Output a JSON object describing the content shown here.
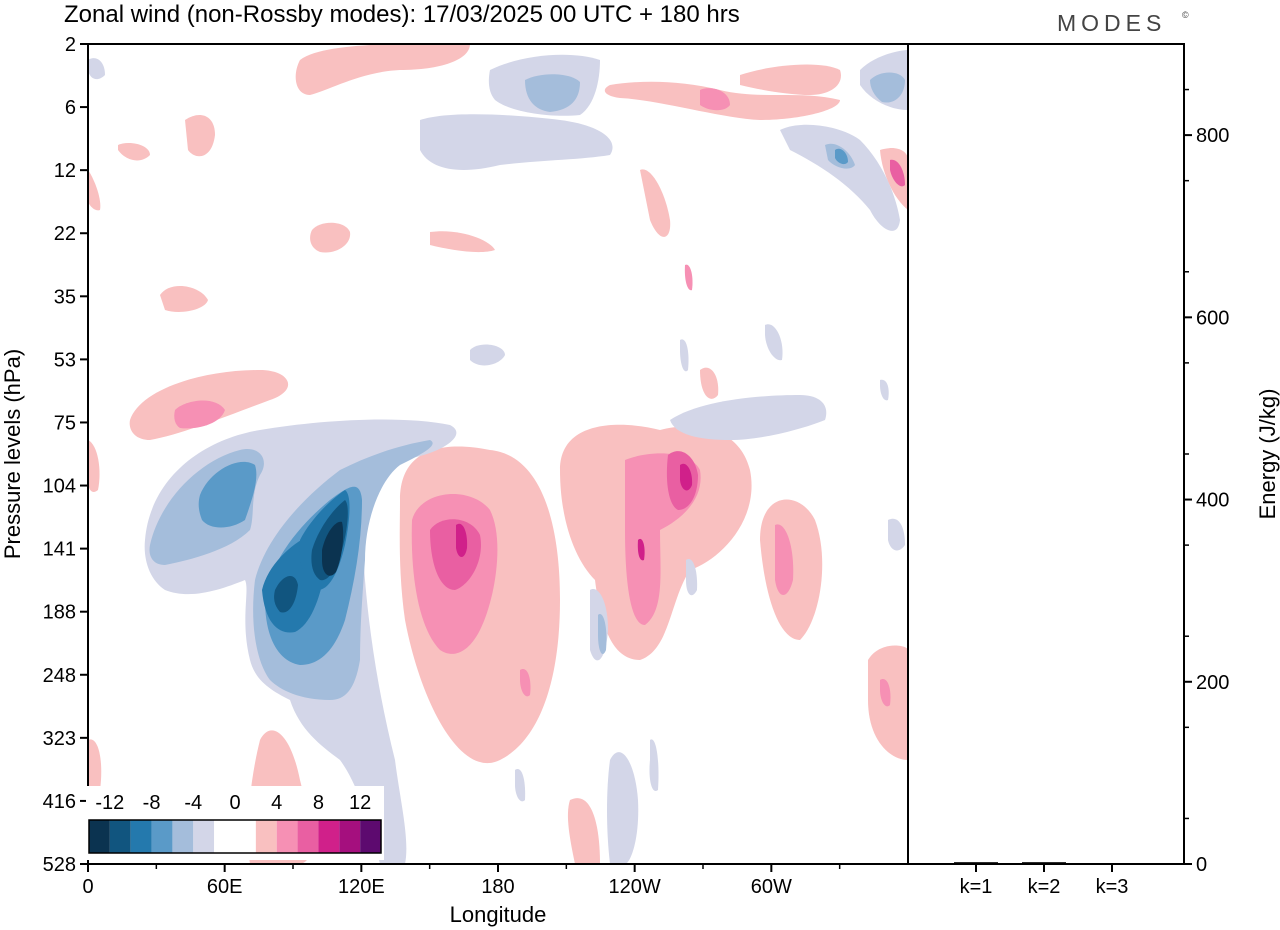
{
  "header": {
    "title": "Zonal wind (non-Rossby modes):  17/03/2025  00 UTC  + 180 hrs",
    "brand": "MODES",
    "brand_mark": "©"
  },
  "chart_data": [
    {
      "type": "heatmap",
      "title": "Zonal wind (non-Rossby modes):  17/03/2025  00 UTC  + 180 hrs",
      "xlabel": "Longitude",
      "ylabel": "Pressure levels (hPa)",
      "x_ticks": [
        "0",
        "60E",
        "120E",
        "180",
        "120W",
        "60W"
      ],
      "x_tick_values": [
        0,
        60,
        120,
        180,
        240,
        300
      ],
      "xlim": [
        0,
        360
      ],
      "y_ticks": [
        "2",
        "6",
        "12",
        "22",
        "35",
        "53",
        "75",
        "104",
        "141",
        "188",
        "248",
        "323",
        "416",
        "528"
      ],
      "colorbar": {
        "labels": [
          "-12",
          "-8",
          "-4",
          "0",
          "4",
          "8",
          "12"
        ],
        "colors": [
          "#0b3350",
          "#11557f",
          "#2479ad",
          "#5a9ac8",
          "#a4bddb",
          "#d3d6e8",
          "#ffffff",
          "#ffffff",
          "#f9c0c0",
          "#f690b4",
          "#e95fa2",
          "#d0208a",
          "#a50f7e",
          "#5d0a6f"
        ]
      },
      "features": [
        {
          "name": "negative core",
          "lon": 105,
          "pressure_hPa": 141,
          "value": -14
        },
        {
          "name": "negative west lobe",
          "lon": 55,
          "pressure_hPa": 110,
          "value": -6
        },
        {
          "name": "positive core",
          "lon": 165,
          "pressure_hPa": 141,
          "value": 10
        },
        {
          "name": "positive east core",
          "lon": 263,
          "pressure_hPa": 104,
          "value": 10
        },
        {
          "name": "positive center",
          "lon": 242,
          "pressure_hPa": 150,
          "value": 6
        }
      ]
    },
    {
      "type": "bar",
      "categories": [
        "k=1",
        "k=2",
        "k=3"
      ],
      "values": [
        2,
        2,
        1
      ],
      "ylabel": "Energy (J/kg)",
      "y_ticks": [
        "0",
        "200",
        "400",
        "600",
        "800"
      ],
      "ylim": [
        0,
        900
      ],
      "bar_color": "#000000"
    }
  ]
}
